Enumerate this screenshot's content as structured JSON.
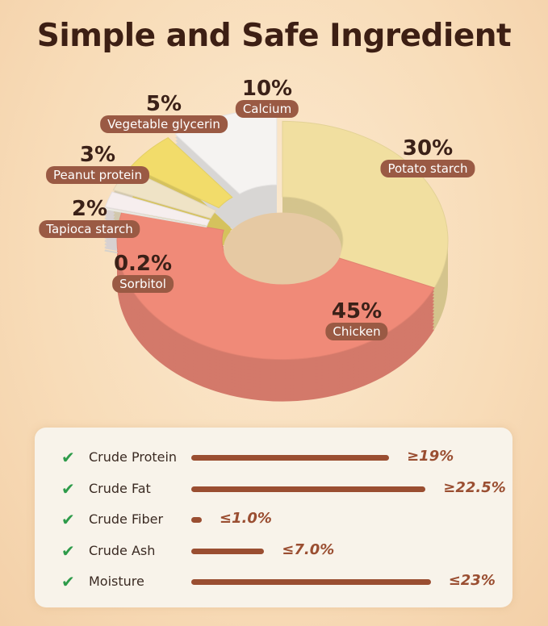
{
  "title": "Simple and Safe Ingredient",
  "chart_data": {
    "type": "pie",
    "variant": "donut",
    "slices": [
      {
        "label": "Potato starch",
        "value": 30,
        "value_label": "30%",
        "color": "#f1dfa0"
      },
      {
        "label": "Chicken",
        "value": 45,
        "value_label": "45%",
        "color": "#f08a78"
      },
      {
        "label": "Sorbitol",
        "value": 0.2,
        "value_label": "0.2%",
        "color": "#f2efe9"
      },
      {
        "label": "Tapioca starch",
        "value": 2,
        "value_label": "2%",
        "color": "#f6eeee"
      },
      {
        "label": "Peanut protein",
        "value": 3,
        "value_label": "3%",
        "color": "#efe3c6"
      },
      {
        "label": "Vegetable glycerin",
        "value": 5,
        "value_label": "5%",
        "color": "#f2dc6a"
      },
      {
        "label": "Calcium",
        "value": 10,
        "value_label": "10%",
        "color": "#f5f3f1"
      }
    ]
  },
  "nutrition": [
    {
      "name": "Crude Protein",
      "value": 19,
      "label": "≥19%"
    },
    {
      "name": "Crude Fat",
      "value": 22.5,
      "label": "≥22.5%"
    },
    {
      "name": "Crude Fiber",
      "value": 1.0,
      "label": "≤1.0%"
    },
    {
      "name": "Crude Ash",
      "value": 7.0,
      "label": "≤7.0%"
    },
    {
      "name": "Moisture",
      "value": 23,
      "label": "≤23%"
    }
  ],
  "check_icon": "check-icon",
  "colors": {
    "accent": "#9a4e31",
    "tag": "#9a5a44",
    "check": "#2e9b4a"
  }
}
